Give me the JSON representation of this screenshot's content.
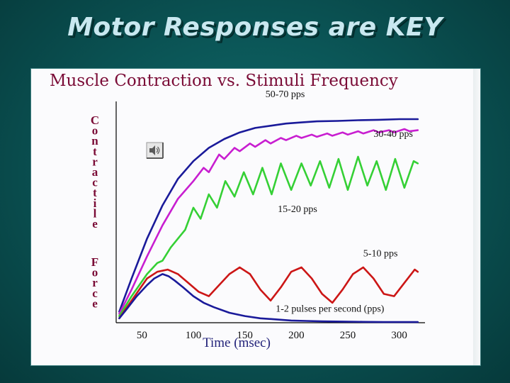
{
  "slide": {
    "title": "Motor Responses are KEY"
  },
  "speaker_icon": "speaker-icon",
  "colors": {
    "title_text": "#c9e8f0",
    "chart_title": "#7a0b36",
    "ylabel": "#7a0b36",
    "xlabel": "#23237a",
    "axis": "#000000"
  },
  "chart_data": {
    "type": "line",
    "title": "Muscle Contraction vs. Stimuli Frequency",
    "xlabel": "Time (msec)",
    "ylabel_top": "Contractile",
    "ylabel_bottom": "Force",
    "xlim": [
      25,
      325
    ],
    "ylim": [
      0,
      100
    ],
    "x_ticks": [
      50,
      100,
      150,
      200,
      250,
      300
    ],
    "x_tick_labels": [
      "50",
      "100",
      "150",
      "200",
      "250",
      "300"
    ],
    "series": [
      {
        "name": "50-70 pps",
        "color": "#1a1a9a",
        "label_at": [
          170,
          102
        ],
        "x": [
          28,
          40,
          55,
          70,
          85,
          100,
          115,
          130,
          145,
          160,
          175,
          190,
          205,
          220,
          240,
          260,
          280,
          300,
          318
        ],
        "y": [
          5,
          20,
          38,
          53,
          65,
          73,
          79,
          83,
          86,
          88,
          89,
          90,
          90.5,
          91,
          91.2,
          91.5,
          91.7,
          92,
          92
        ]
      },
      {
        "name": "30-40 pps",
        "color": "#c81ed0",
        "label_at": [
          275,
          84
        ],
        "x": [
          28,
          40,
          55,
          70,
          85,
          100,
          110,
          115,
          125,
          130,
          140,
          145,
          155,
          160,
          170,
          175,
          185,
          190,
          200,
          205,
          215,
          220,
          230,
          235,
          245,
          250,
          260,
          265,
          275,
          280,
          290,
          295,
          305,
          310,
          318
        ],
        "y": [
          4,
          15,
          30,
          44,
          56,
          64,
          70,
          68,
          76,
          74,
          79,
          77.5,
          81,
          79.5,
          82.5,
          81,
          83.5,
          82.5,
          84.5,
          83.5,
          85,
          84,
          85.5,
          84.5,
          86,
          85,
          86.5,
          85.5,
          87,
          86,
          87,
          86,
          87.5,
          86.5,
          87
        ]
      },
      {
        "name": "15-20 pps",
        "color": "#35d035",
        "label_at": [
          182,
          50
        ],
        "x": [
          28,
          40,
          55,
          65,
          70,
          78,
          85,
          92,
          100,
          107,
          115,
          123,
          131,
          140,
          149,
          158,
          167,
          176,
          185,
          195,
          205,
          214,
          223,
          232,
          241,
          250,
          260,
          269,
          278,
          287,
          296,
          305,
          314,
          318
        ],
        "y": [
          3,
          12,
          22,
          27,
          28,
          34,
          38,
          42,
          52,
          47,
          58,
          52,
          64,
          57,
          68,
          58,
          70,
          58,
          72,
          60,
          72,
          62,
          73,
          61,
          74,
          60,
          75,
          62,
          73,
          60,
          74,
          61,
          73,
          72
        ]
      },
      {
        "name": "5-10 pps",
        "color": "#cc1616",
        "label_at": [
          265,
          30
        ],
        "x": [
          28,
          40,
          55,
          65,
          75,
          85,
          95,
          105,
          115,
          125,
          135,
          145,
          155,
          165,
          175,
          185,
          195,
          205,
          215,
          225,
          235,
          245,
          255,
          265,
          275,
          285,
          295,
          305,
          315,
          318
        ],
        "y": [
          2,
          10,
          20,
          23,
          24,
          22,
          18,
          14,
          12,
          17,
          22,
          25,
          22,
          15,
          10,
          16,
          23,
          25,
          20,
          13,
          9,
          15,
          22,
          25,
          20,
          13,
          12,
          18,
          24,
          23
        ]
      },
      {
        "name": "1-2 pulses per second (pps)",
        "color": "#1a1a9a",
        "label_at": [
          180,
          5
        ],
        "x": [
          28,
          35,
          45,
          55,
          62,
          70,
          76,
          82,
          90,
          100,
          110,
          120,
          135,
          150,
          165,
          180,
          195,
          210,
          225,
          245,
          265,
          285,
          305,
          318
        ],
        "y": [
          2,
          6,
          12,
          17,
          20,
          22,
          21,
          19,
          16,
          12,
          9,
          7,
          4.5,
          3,
          2,
          1.5,
          1,
          0.8,
          0.6,
          0.5,
          0.4,
          0.3,
          0.3,
          0.3
        ]
      }
    ]
  }
}
